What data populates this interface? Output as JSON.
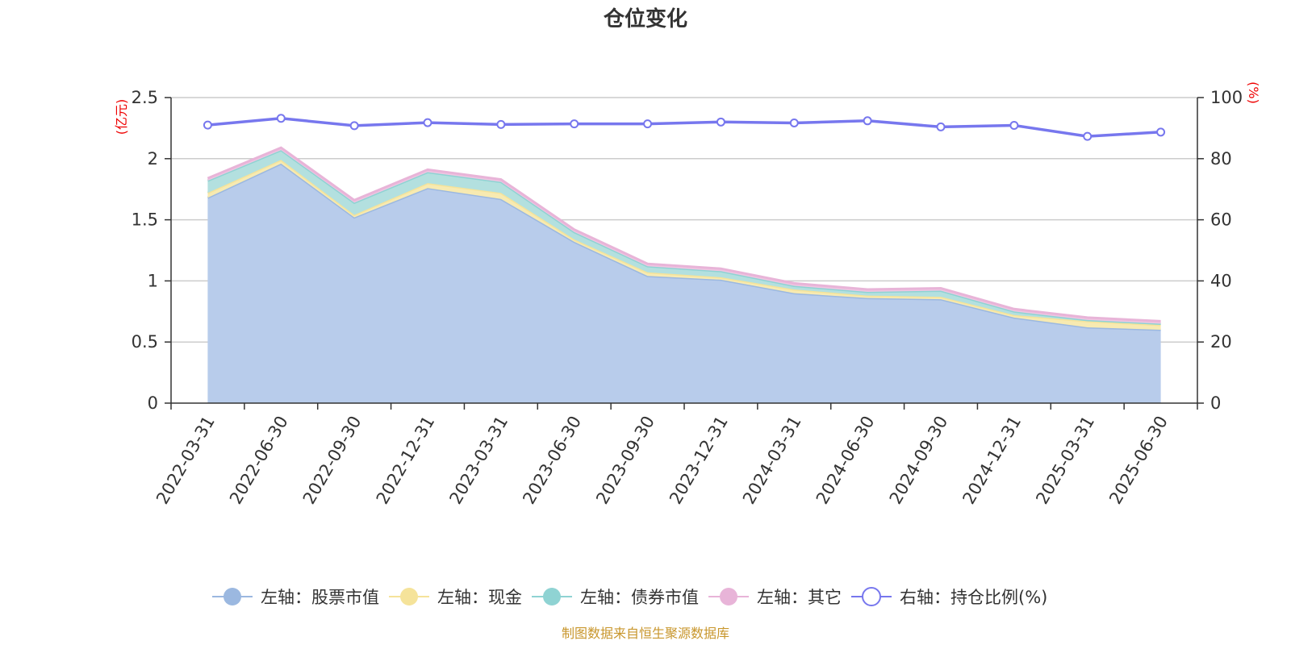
{
  "chart_data": {
    "type": "area",
    "title": "仓位变化",
    "categories": [
      "2022-03-31",
      "2022-06-30",
      "2022-09-30",
      "2022-12-31",
      "2023-03-31",
      "2023-06-30",
      "2023-09-30",
      "2023-12-31",
      "2024-03-31",
      "2024-06-30",
      "2024-09-30",
      "2024-12-31",
      "2025-03-31",
      "2025-06-30"
    ],
    "left_axis": {
      "unit": "(亿元)",
      "ylim": [
        0,
        2.5
      ],
      "ticks": [
        "0",
        "0.5",
        "1",
        "1.5",
        "2",
        "2.5"
      ]
    },
    "right_axis": {
      "unit": "(%)",
      "ylim": [
        0,
        100
      ],
      "ticks": [
        "0",
        "20",
        "40",
        "60",
        "80",
        "100"
      ]
    },
    "stacked": true,
    "grid": true,
    "legend_position": "bottom",
    "series": [
      {
        "name": "左轴：股票市值",
        "axis": "left",
        "type": "area",
        "color": "#9bb8e0",
        "fill": "#b8cceb",
        "values": [
          1.68,
          1.96,
          1.52,
          1.76,
          1.67,
          1.32,
          1.04,
          1.01,
          0.9,
          0.86,
          0.85,
          0.7,
          0.62,
          0.6
        ]
      },
      {
        "name": "左轴：现金",
        "axis": "left",
        "type": "area",
        "color": "#f5e39a",
        "fill": "#f7eab1",
        "values": [
          0.04,
          0.03,
          0.02,
          0.04,
          0.05,
          0.02,
          0.03,
          0.02,
          0.03,
          0.02,
          0.02,
          0.02,
          0.05,
          0.04
        ]
      },
      {
        "name": "左轴：债券市值",
        "axis": "left",
        "type": "area",
        "color": "#8fd3d3",
        "fill": "#b3e0df",
        "values": [
          0.1,
          0.08,
          0.1,
          0.09,
          0.09,
          0.06,
          0.05,
          0.05,
          0.03,
          0.03,
          0.05,
          0.03,
          0.01,
          0.01
        ]
      },
      {
        "name": "左轴：其它",
        "axis": "left",
        "type": "area",
        "color": "#e8b4d8",
        "fill": "#efc6e2",
        "values": [
          0.02,
          0.02,
          0.02,
          0.02,
          0.02,
          0.02,
          0.02,
          0.02,
          0.02,
          0.02,
          0.02,
          0.02,
          0.02,
          0.02
        ]
      },
      {
        "name": "右轴：持仓比例(%)",
        "axis": "right",
        "type": "line",
        "color": "#7777ee",
        "values": [
          91.0,
          93.2,
          90.8,
          91.8,
          91.2,
          91.4,
          91.4,
          92.0,
          91.7,
          92.4,
          90.4,
          90.9,
          87.3,
          88.7
        ]
      }
    ]
  },
  "footer": "制图数据来自恒生聚源数据库"
}
